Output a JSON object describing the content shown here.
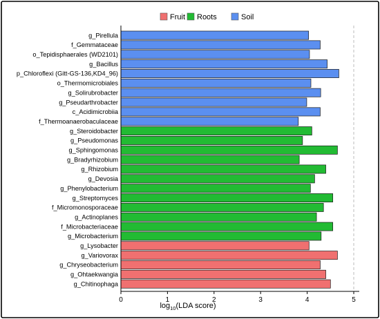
{
  "chart_data": {
    "type": "bar",
    "orientation": "horizontal",
    "xlabel_prefix": "log",
    "xlabel_sub": "10",
    "xlabel_main": "(LDA score)",
    "xlim": [
      0,
      5
    ],
    "xticks": [
      "0",
      "1",
      "2",
      "3",
      "4",
      "5"
    ],
    "grid": "dashed vertical line at 5",
    "legend": {
      "placement": "top",
      "entries": [
        {
          "name": "Fruit",
          "color": "#f07070"
        },
        {
          "name": "Roots",
          "color": "#22bb33"
        },
        {
          "name": "Soil",
          "color": "#5b8ff0"
        }
      ]
    },
    "bars": [
      {
        "label": "g_Pirellula",
        "value": 4.03,
        "group": "Soil"
      },
      {
        "label": "f_Gemmataceae",
        "value": 4.28,
        "group": "Soil"
      },
      {
        "label": "o_Tepidisphaerales (WD2101)",
        "value": 4.05,
        "group": "Soil"
      },
      {
        "label": "g_Bacillus",
        "value": 4.43,
        "group": "Soil"
      },
      {
        "label": "p_Chloroflexi (Gitt-GS-136,KD4_96)",
        "value": 4.68,
        "group": "Soil"
      },
      {
        "label": "o_Thermomicrobiales",
        "value": 4.08,
        "group": "Soil"
      },
      {
        "label": "g_Solirubrobacter",
        "value": 4.29,
        "group": "Soil"
      },
      {
        "label": "g_Pseudarthrobacter",
        "value": 3.99,
        "group": "Soil"
      },
      {
        "label": "c_Acidimicrobiia",
        "value": 4.28,
        "group": "Soil"
      },
      {
        "label": "f_Thermoanaerobaculaceae",
        "value": 3.81,
        "group": "Soil"
      },
      {
        "label": "g_Steroidobacter",
        "value": 4.1,
        "group": "Roots"
      },
      {
        "label": "g_Pseudomonas",
        "value": 3.9,
        "group": "Roots"
      },
      {
        "label": "g_Sphingomonas",
        "value": 4.65,
        "group": "Roots"
      },
      {
        "label": "g_Bradyrhizobium",
        "value": 3.83,
        "group": "Roots"
      },
      {
        "label": "g_Rhizobium",
        "value": 4.4,
        "group": "Roots"
      },
      {
        "label": "g_Devosia",
        "value": 4.16,
        "group": "Roots"
      },
      {
        "label": "g_Phenylobacterium",
        "value": 4.07,
        "group": "Roots"
      },
      {
        "label": "g_Streptomyces",
        "value": 4.55,
        "group": "Roots"
      },
      {
        "label": "f_Micromonosporaceae",
        "value": 4.35,
        "group": "Roots"
      },
      {
        "label": "g_Actinoplanes",
        "value": 4.2,
        "group": "Roots"
      },
      {
        "label": "f_Microbacteriaceae",
        "value": 4.55,
        "group": "Roots"
      },
      {
        "label": "g_Microbacterium",
        "value": 4.3,
        "group": "Roots"
      },
      {
        "label": "g_Lysobacter",
        "value": 4.04,
        "group": "Fruit"
      },
      {
        "label": "g_Variovorax",
        "value": 4.65,
        "group": "Fruit"
      },
      {
        "label": "g_Chryseobacterium",
        "value": 4.28,
        "group": "Fruit"
      },
      {
        "label": "g_Ohtaekwangia",
        "value": 4.4,
        "group": "Fruit"
      },
      {
        "label": "g_Chitinophaga",
        "value": 4.5,
        "group": "Fruit"
      }
    ]
  }
}
